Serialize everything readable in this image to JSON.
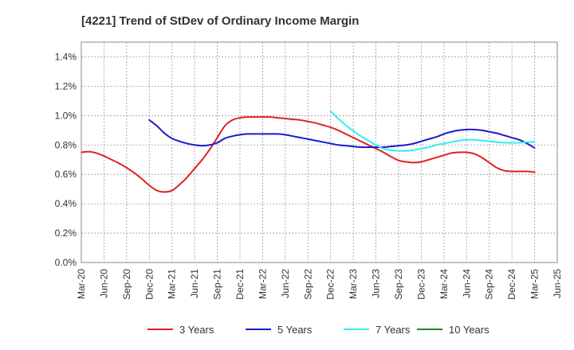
{
  "chart_data": {
    "type": "line",
    "title": "[4221]  Trend of StDev of Ordinary Income Margin",
    "xlabel": "",
    "ylabel": "",
    "x_ticks": [
      "Mar-20",
      "Jun-20",
      "Sep-20",
      "Dec-20",
      "Mar-21",
      "Jun-21",
      "Sep-21",
      "Dec-21",
      "Mar-22",
      "Jun-22",
      "Sep-22",
      "Dec-22",
      "Mar-23",
      "Jun-23",
      "Sep-23",
      "Dec-23",
      "Mar-24",
      "Jun-24",
      "Sep-24",
      "Dec-24",
      "Mar-25",
      "Jun-25"
    ],
    "y_ticks": [
      "0.0%",
      "0.2%",
      "0.4%",
      "0.6%",
      "0.8%",
      "1.0%",
      "1.2%",
      "1.4%"
    ],
    "ylim": [
      0,
      1.5
    ],
    "grid": true,
    "legend_position": "bottom",
    "series": [
      {
        "name": "3 Years",
        "color": "#dd2222",
        "points": [
          [
            "Mar-20",
            0.75
          ],
          [
            "Apr-20",
            0.755
          ],
          [
            "May-20",
            0.745
          ],
          [
            "Jun-20",
            0.725
          ],
          [
            "Jul-20",
            0.7
          ],
          [
            "Aug-20",
            0.675
          ],
          [
            "Sep-20",
            0.645
          ],
          [
            "Oct-20",
            0.61
          ],
          [
            "Nov-20",
            0.57
          ],
          [
            "Dec-20",
            0.525
          ],
          [
            "Jan-21",
            0.49
          ],
          [
            "Feb-21",
            0.48
          ],
          [
            "Mar-21",
            0.49
          ],
          [
            "Apr-21",
            0.53
          ],
          [
            "May-21",
            0.58
          ],
          [
            "Jun-21",
            0.64
          ],
          [
            "Jul-21",
            0.7
          ],
          [
            "Aug-21",
            0.77
          ],
          [
            "Sep-21",
            0.85
          ],
          [
            "Oct-21",
            0.93
          ],
          [
            "Nov-21",
            0.97
          ],
          [
            "Dec-21",
            0.985
          ],
          [
            "Jan-22",
            0.99
          ],
          [
            "Feb-22",
            0.99
          ],
          [
            "Mar-22",
            0.99
          ],
          [
            "Apr-22",
            0.99
          ],
          [
            "May-22",
            0.985
          ],
          [
            "Jun-22",
            0.98
          ],
          [
            "Jul-22",
            0.975
          ],
          [
            "Aug-22",
            0.97
          ],
          [
            "Sep-22",
            0.96
          ],
          [
            "Oct-22",
            0.95
          ],
          [
            "Nov-22",
            0.935
          ],
          [
            "Dec-22",
            0.92
          ],
          [
            "Jan-23",
            0.9
          ],
          [
            "Feb-23",
            0.875
          ],
          [
            "Mar-23",
            0.85
          ],
          [
            "Apr-23",
            0.825
          ],
          [
            "May-23",
            0.8
          ],
          [
            "Jun-23",
            0.775
          ],
          [
            "Jul-23",
            0.75
          ],
          [
            "Aug-23",
            0.72
          ],
          [
            "Sep-23",
            0.695
          ],
          [
            "Oct-23",
            0.685
          ],
          [
            "Nov-23",
            0.68
          ],
          [
            "Dec-23",
            0.685
          ],
          [
            "Jan-24",
            0.7
          ],
          [
            "Feb-24",
            0.715
          ],
          [
            "Mar-24",
            0.73
          ],
          [
            "Apr-24",
            0.745
          ],
          [
            "May-24",
            0.75
          ],
          [
            "Jun-24",
            0.75
          ],
          [
            "Jul-24",
            0.74
          ],
          [
            "Aug-24",
            0.715
          ],
          [
            "Sep-24",
            0.68
          ],
          [
            "Oct-24",
            0.645
          ],
          [
            "Nov-24",
            0.625
          ],
          [
            "Dec-24",
            0.62
          ],
          [
            "Jan-25",
            0.62
          ],
          [
            "Feb-25",
            0.62
          ],
          [
            "Mar-25",
            0.615
          ]
        ]
      },
      {
        "name": "5 Years",
        "color": "#1a1acc",
        "points": [
          [
            "Mar-20",
            null
          ],
          [
            "Dec-20",
            0.97
          ],
          [
            "Jan-21",
            0.93
          ],
          [
            "Feb-21",
            0.88
          ],
          [
            "Mar-21",
            0.845
          ],
          [
            "Apr-21",
            0.825
          ],
          [
            "May-21",
            0.81
          ],
          [
            "Jun-21",
            0.8
          ],
          [
            "Jul-21",
            0.795
          ],
          [
            "Aug-21",
            0.8
          ],
          [
            "Sep-21",
            0.815
          ],
          [
            "Oct-21",
            0.845
          ],
          [
            "Nov-21",
            0.86
          ],
          [
            "Dec-21",
            0.87
          ],
          [
            "Jan-22",
            0.875
          ],
          [
            "Feb-22",
            0.875
          ],
          [
            "Mar-22",
            0.875
          ],
          [
            "Apr-22",
            0.875
          ],
          [
            "May-22",
            0.875
          ],
          [
            "Jun-22",
            0.87
          ],
          [
            "Jul-22",
            0.86
          ],
          [
            "Aug-22",
            0.85
          ],
          [
            "Sep-22",
            0.84
          ],
          [
            "Oct-22",
            0.83
          ],
          [
            "Nov-22",
            0.82
          ],
          [
            "Dec-22",
            0.81
          ],
          [
            "Jan-23",
            0.8
          ],
          [
            "Feb-23",
            0.795
          ],
          [
            "Mar-23",
            0.79
          ],
          [
            "Apr-23",
            0.785
          ],
          [
            "May-23",
            0.785
          ],
          [
            "Jun-23",
            0.785
          ],
          [
            "Jul-23",
            0.785
          ],
          [
            "Aug-23",
            0.79
          ],
          [
            "Sep-23",
            0.795
          ],
          [
            "Oct-23",
            0.8
          ],
          [
            "Nov-23",
            0.81
          ],
          [
            "Dec-23",
            0.825
          ],
          [
            "Jan-24",
            0.84
          ],
          [
            "Feb-24",
            0.855
          ],
          [
            "Mar-24",
            0.875
          ],
          [
            "Apr-24",
            0.89
          ],
          [
            "May-24",
            0.9
          ],
          [
            "Jun-24",
            0.905
          ],
          [
            "Jul-24",
            0.905
          ],
          [
            "Aug-24",
            0.9
          ],
          [
            "Sep-24",
            0.89
          ],
          [
            "Oct-24",
            0.88
          ],
          [
            "Nov-24",
            0.865
          ],
          [
            "Dec-24",
            0.85
          ],
          [
            "Jan-25",
            0.835
          ],
          [
            "Feb-25",
            0.81
          ],
          [
            "Mar-25",
            0.78
          ]
        ]
      },
      {
        "name": "7 Years",
        "color": "#33eeee",
        "points": [
          [
            "Mar-20",
            null
          ],
          [
            "Dec-22",
            1.03
          ],
          [
            "Jan-23",
            0.98
          ],
          [
            "Feb-23",
            0.935
          ],
          [
            "Mar-23",
            0.895
          ],
          [
            "Apr-23",
            0.86
          ],
          [
            "May-23",
            0.83
          ],
          [
            "Jun-23",
            0.8
          ],
          [
            "Jul-23",
            0.775
          ],
          [
            "Aug-23",
            0.765
          ],
          [
            "Sep-23",
            0.76
          ],
          [
            "Oct-23",
            0.76
          ],
          [
            "Nov-23",
            0.765
          ],
          [
            "Dec-23",
            0.775
          ],
          [
            "Jan-24",
            0.785
          ],
          [
            "Feb-24",
            0.8
          ],
          [
            "Mar-24",
            0.81
          ],
          [
            "Apr-24",
            0.82
          ],
          [
            "May-24",
            0.83
          ],
          [
            "Jun-24",
            0.835
          ],
          [
            "Jul-24",
            0.835
          ],
          [
            "Aug-24",
            0.83
          ],
          [
            "Sep-24",
            0.825
          ],
          [
            "Oct-24",
            0.82
          ],
          [
            "Nov-24",
            0.815
          ],
          [
            "Dec-24",
            0.815
          ],
          [
            "Jan-25",
            0.815
          ],
          [
            "Feb-25",
            0.82
          ],
          [
            "Mar-25",
            0.82
          ]
        ]
      },
      {
        "name": "10 Years",
        "color": "#228822",
        "points": []
      }
    ]
  }
}
